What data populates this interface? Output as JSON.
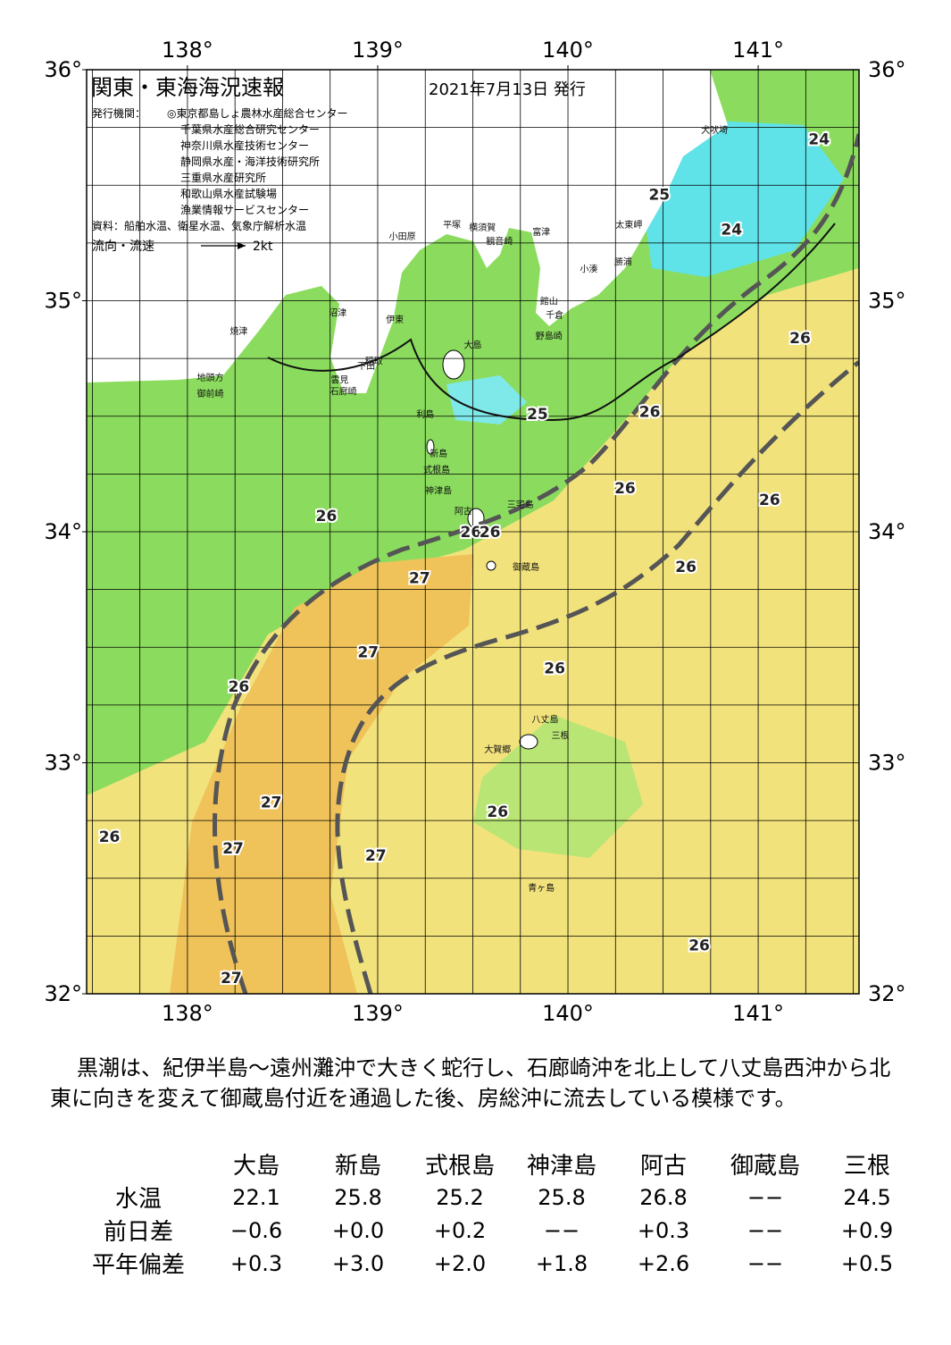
{
  "map": {
    "title": "関東・東海海況速報",
    "date": "2021年7月13日 発行",
    "issuers_label": "発行機関：",
    "issuers": [
      "◎東京都島しょ農林水産総合センター",
      "千葉県水産総合研究センター",
      "神奈川県水産技術センター",
      "静岡県水産・海洋技術研究所",
      "三重県水産研究所",
      "和歌山県水産試験場",
      "漁業情報サービスセンター"
    ],
    "sources": "資料：船舶水温、衛星水温、気象庁解析水温",
    "flow_label": "流向・流速",
    "flow_scale": "2kt",
    "lon_range": [
      137.47,
      141.53
    ],
    "lat_range": [
      32,
      36
    ],
    "grid_step": 0.25,
    "lon_ticks": [
      {
        "value": 138,
        "label": "138°"
      },
      {
        "value": 139,
        "label": "139°"
      },
      {
        "value": 140,
        "label": "140°"
      },
      {
        "value": 141,
        "label": "141°"
      }
    ],
    "lat_ticks": [
      {
        "value": 32,
        "label": "32°"
      },
      {
        "value": 33,
        "label": "33°"
      },
      {
        "value": 34,
        "label": "34°"
      },
      {
        "value": 35,
        "label": "35°"
      },
      {
        "value": 36,
        "label": "36°"
      }
    ],
    "temperature_labels": [
      {
        "value": 24,
        "lon": 141.32,
        "lat": 35.7
      },
      {
        "value": 25,
        "lon": 140.48,
        "lat": 35.46
      },
      {
        "value": 24,
        "lon": 140.86,
        "lat": 35.31
      },
      {
        "value": 26,
        "lon": 141.22,
        "lat": 34.84
      },
      {
        "value": 25,
        "lon": 139.84,
        "lat": 34.51
      },
      {
        "value": 26,
        "lon": 140.43,
        "lat": 34.52
      },
      {
        "value": 26,
        "lon": 140.3,
        "lat": 34.19
      },
      {
        "value": 26,
        "lon": 141.06,
        "lat": 34.14
      },
      {
        "value": 26,
        "lon": 138.73,
        "lat": 34.07
      },
      {
        "value": 26,
        "lon": 139.49,
        "lat": 34.0
      },
      {
        "value": 26,
        "lon": 139.59,
        "lat": 34.0
      },
      {
        "value": 27,
        "lon": 139.22,
        "lat": 33.8
      },
      {
        "value": 26,
        "lon": 140.62,
        "lat": 33.85
      },
      {
        "value": 27,
        "lon": 138.95,
        "lat": 33.48
      },
      {
        "value": 26,
        "lon": 139.93,
        "lat": 33.41
      },
      {
        "value": 26,
        "lon": 138.27,
        "lat": 33.33
      },
      {
        "value": 27,
        "lon": 138.44,
        "lat": 32.83
      },
      {
        "value": 26,
        "lon": 137.59,
        "lat": 32.68
      },
      {
        "value": 27,
        "lon": 138.24,
        "lat": 32.63
      },
      {
        "value": 27,
        "lon": 138.99,
        "lat": 32.6
      },
      {
        "value": 26,
        "lon": 139.63,
        "lat": 32.79
      },
      {
        "value": 26,
        "lon": 140.69,
        "lat": 32.21
      },
      {
        "value": 27,
        "lon": 138.23,
        "lat": 32.07
      }
    ],
    "places": [
      {
        "name": "犬吠埼",
        "lon": 140.77,
        "lat": 35.74
      },
      {
        "name": "太東岬",
        "lon": 140.32,
        "lat": 35.33
      },
      {
        "name": "勝浦",
        "lon": 140.29,
        "lat": 35.17
      },
      {
        "name": "小湊",
        "lon": 140.11,
        "lat": 35.14
      },
      {
        "name": "館山",
        "lon": 139.9,
        "lat": 35.0
      },
      {
        "name": "千倉",
        "lon": 139.93,
        "lat": 34.94
      },
      {
        "name": "野島崎",
        "lon": 139.9,
        "lat": 34.85
      },
      {
        "name": "富津",
        "lon": 139.86,
        "lat": 35.3
      },
      {
        "name": "横須賀",
        "lon": 139.55,
        "lat": 35.32
      },
      {
        "name": "観音崎",
        "lon": 139.64,
        "lat": 35.26
      },
      {
        "name": "平塚",
        "lon": 139.39,
        "lat": 35.33
      },
      {
        "name": "小田原",
        "lon": 139.13,
        "lat": 35.28
      },
      {
        "name": "沼津",
        "lon": 138.79,
        "lat": 34.95
      },
      {
        "name": "伊東",
        "lon": 139.09,
        "lat": 34.92
      },
      {
        "name": "稲取",
        "lon": 138.98,
        "lat": 34.74
      },
      {
        "name": "下田",
        "lon": 138.94,
        "lat": 34.72
      },
      {
        "name": "雲見",
        "lon": 138.8,
        "lat": 34.66
      },
      {
        "name": "石廊崎",
        "lon": 138.82,
        "lat": 34.61
      },
      {
        "name": "焼津",
        "lon": 138.27,
        "lat": 34.87
      },
      {
        "name": "地頭方",
        "lon": 138.12,
        "lat": 34.67
      },
      {
        "name": "御前崎",
        "lon": 138.12,
        "lat": 34.6
      },
      {
        "name": "大島",
        "lon": 139.5,
        "lat": 34.81
      },
      {
        "name": "利島",
        "lon": 139.25,
        "lat": 34.51
      },
      {
        "name": "新島",
        "lon": 139.32,
        "lat": 34.34
      },
      {
        "name": "式根島",
        "lon": 139.31,
        "lat": 34.27
      },
      {
        "name": "神津島",
        "lon": 139.32,
        "lat": 34.18
      },
      {
        "name": "三宅島",
        "lon": 139.75,
        "lat": 34.12
      },
      {
        "name": "阿古",
        "lon": 139.45,
        "lat": 34.09
      },
      {
        "name": "御蔵島",
        "lon": 139.78,
        "lat": 33.85
      },
      {
        "name": "八丈島",
        "lon": 139.88,
        "lat": 33.19
      },
      {
        "name": "三根",
        "lon": 139.96,
        "lat": 33.12
      },
      {
        "name": "大賀郷",
        "lon": 139.63,
        "lat": 33.06
      },
      {
        "name": "青ヶ島",
        "lon": 139.86,
        "lat": 32.46
      }
    ]
  },
  "description": "黒潮は、紀伊半島～遠州灘沖で大きく蛇行し、石廊崎沖を北上して八丈島西沖から北東に向きを変えて御蔵島付近を通過した後、房総沖に流去している模様です。",
  "table": {
    "columns": [
      "大島",
      "新島",
      "式根島",
      "神津島",
      "阿古",
      "御蔵島",
      "三根"
    ],
    "rows": [
      {
        "label": "水温",
        "values": [
          "22.1",
          "25.8",
          "25.2",
          "25.8",
          "26.8",
          "−−",
          "24.5"
        ]
      },
      {
        "label": "前日差",
        "values": [
          "−0.6",
          "+0.0",
          "+0.2",
          "−−",
          "+0.3",
          "−−",
          "+0.9"
        ]
      },
      {
        "label": "平年偏差",
        "values": [
          "+0.3",
          "+3.0",
          "+2.0",
          "+1.8",
          "+2.6",
          "−−",
          "+0.5"
        ]
      }
    ]
  }
}
